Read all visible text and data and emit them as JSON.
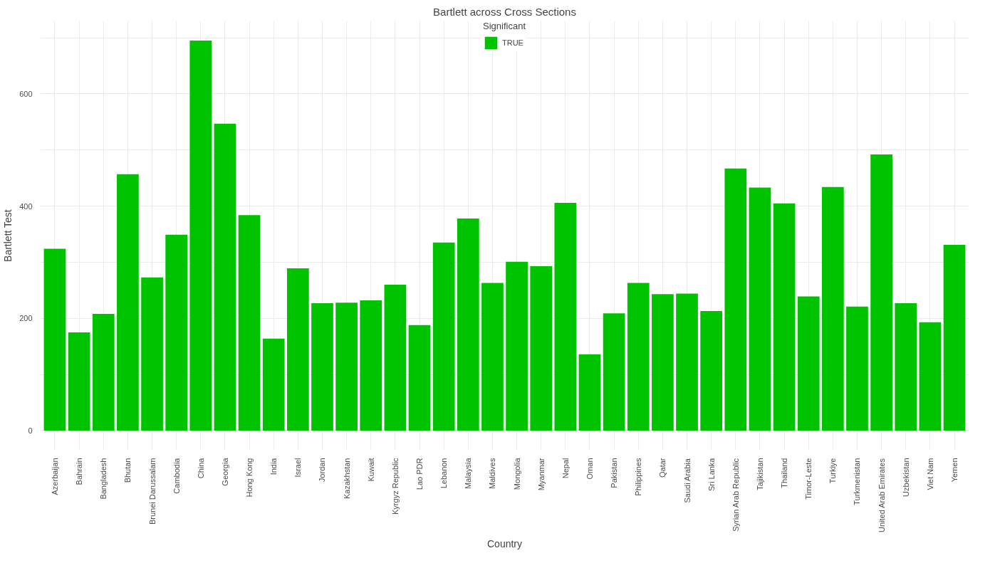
{
  "chart_data": {
    "type": "bar",
    "title": "Bartlett across Cross Sections",
    "xlabel": "Country",
    "ylabel": "Bartlett Test",
    "legend_title": "Significant",
    "legend": "top",
    "grid": true,
    "categories": [
      "Azerbaijan",
      "Bahrain",
      "Bangladesh",
      "Bhutan",
      "Brunei Darussalam",
      "Cambodia",
      "China",
      "Georgia",
      "Hong Kong",
      "India",
      "Israel",
      "Jordan",
      "Kazakhstan",
      "Kuwait",
      "Kyrgyz Republic",
      "Lao PDR",
      "Lebanon",
      "Malaysia",
      "Maldives",
      "Mongolia",
      "Myanmar",
      "Nepal",
      "Oman",
      "Pakistan",
      "Philippines",
      "Qatar",
      "Saudi Arabia",
      "Sri Lanka",
      "Syrian Arab Republic",
      "Tajikistan",
      "Thailand",
      "Timor-Leste",
      "Turkiye",
      "Turkmenistan",
      "United Arab Emirates",
      "Uzbekistan",
      "Viet Nam",
      "Yemen"
    ],
    "series": [
      {
        "name": "TRUE",
        "color": "#00c300",
        "values": [
          324,
          175,
          208,
          457,
          273,
          349,
          695,
          547,
          384,
          164,
          289,
          227,
          228,
          232,
          260,
          188,
          335,
          378,
          263,
          301,
          293,
          406,
          136,
          209,
          263,
          243,
          244,
          213,
          467,
          433,
          405,
          239,
          434,
          221,
          492,
          227,
          193,
          331
        ]
      }
    ],
    "ylim": [
      -35,
      730
    ],
    "yticks": [
      0,
      {
        "value": 100,
        "label": null
      },
      200,
      {
        "value": 300,
        "label": null
      },
      400,
      {
        "value": 500,
        "label": null
      },
      600,
      {
        "value": 700,
        "label": null
      }
    ]
  }
}
